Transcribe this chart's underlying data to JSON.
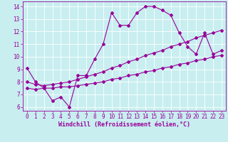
{
  "xlabel": "Windchill (Refroidissement éolien,°C)",
  "bg_color": "#c8eef0",
  "line_color": "#990099",
  "grid_color": "#ffffff",
  "xlim": [
    -0.5,
    23.5
  ],
  "ylim": [
    5.7,
    14.4
  ],
  "xticks": [
    0,
    1,
    2,
    3,
    4,
    5,
    6,
    7,
    8,
    9,
    10,
    11,
    12,
    13,
    14,
    15,
    16,
    17,
    18,
    19,
    20,
    21,
    22,
    23
  ],
  "yticks": [
    6,
    7,
    8,
    9,
    10,
    11,
    12,
    13,
    14
  ],
  "line1_x": [
    0,
    1,
    2,
    3,
    4,
    5,
    6,
    7,
    8,
    9,
    10,
    11,
    12,
    13,
    14,
    15,
    16,
    17,
    18,
    19,
    20,
    21,
    22,
    23
  ],
  "line1_y": [
    9.1,
    8.0,
    7.5,
    6.5,
    6.8,
    6.0,
    8.5,
    8.5,
    9.8,
    11.0,
    13.5,
    12.5,
    12.5,
    13.5,
    14.0,
    14.0,
    13.7,
    13.3,
    11.9,
    10.8,
    10.2,
    11.9,
    10.2,
    10.5
  ],
  "line2_x": [
    0,
    1,
    2,
    3,
    4,
    5,
    6,
    7,
    8,
    9,
    10,
    11,
    12,
    13,
    14,
    15,
    16,
    17,
    18,
    19,
    20,
    21,
    22,
    23
  ],
  "line2_y": [
    8.0,
    7.8,
    7.7,
    7.8,
    7.9,
    8.0,
    8.2,
    8.4,
    8.6,
    8.8,
    9.1,
    9.3,
    9.6,
    9.8,
    10.1,
    10.3,
    10.5,
    10.8,
    11.0,
    11.2,
    11.5,
    11.7,
    11.9,
    12.1
  ],
  "line3_x": [
    0,
    1,
    2,
    3,
    4,
    5,
    6,
    7,
    8,
    9,
    10,
    11,
    12,
    13,
    14,
    15,
    16,
    17,
    18,
    19,
    20,
    21,
    22,
    23
  ],
  "line3_y": [
    7.5,
    7.4,
    7.5,
    7.5,
    7.6,
    7.6,
    7.7,
    7.8,
    7.9,
    8.0,
    8.2,
    8.3,
    8.5,
    8.6,
    8.8,
    8.9,
    9.1,
    9.2,
    9.4,
    9.5,
    9.7,
    9.8,
    10.0,
    10.1
  ],
  "marker": "D",
  "marker_size": 2.0,
  "line_width": 0.8,
  "tick_fontsize": 5.5,
  "label_fontsize": 6.0
}
